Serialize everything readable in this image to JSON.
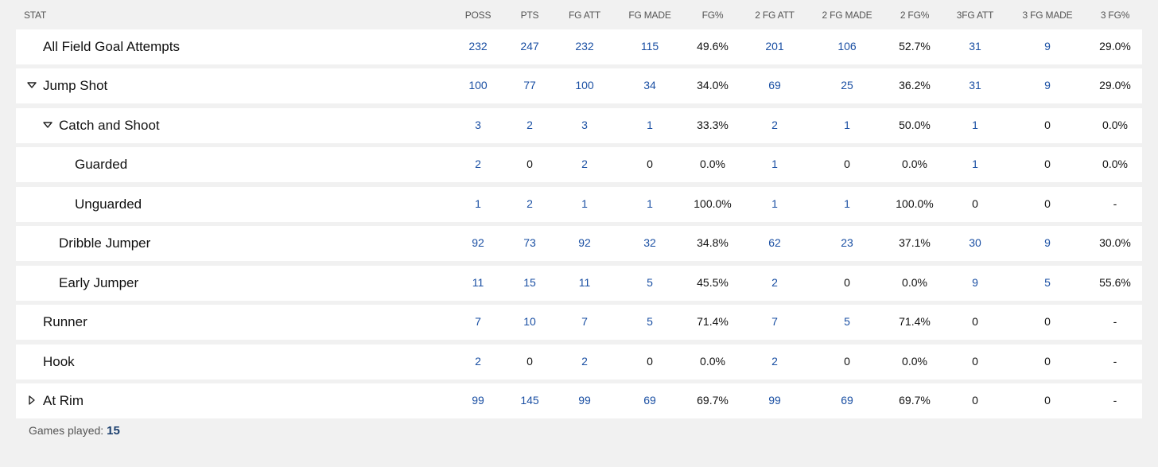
{
  "columns": [
    "STAT",
    "POSS",
    "PTS",
    "FG ATT",
    "FG MADE",
    "FG%",
    "2 FG ATT",
    "2 FG MADE",
    "2 FG%",
    "3FG ATT",
    "3 FG MADE",
    "3 FG%"
  ],
  "rows": [
    {
      "label": "All Field Goal Attempts",
      "indent": 0,
      "toggle": "none",
      "cells": [
        "232",
        "247",
        "232",
        "115",
        "49.6%",
        "201",
        "106",
        "52.7%",
        "31",
        "9",
        "29.0%"
      ],
      "links": [
        true,
        true,
        true,
        true,
        false,
        true,
        true,
        false,
        true,
        true,
        false
      ]
    },
    {
      "label": "Jump Shot",
      "indent": 0,
      "toggle": "expanded",
      "cells": [
        "100",
        "77",
        "100",
        "34",
        "34.0%",
        "69",
        "25",
        "36.2%",
        "31",
        "9",
        "29.0%"
      ],
      "links": [
        true,
        true,
        true,
        true,
        false,
        true,
        true,
        false,
        true,
        true,
        false
      ]
    },
    {
      "label": "Catch and Shoot",
      "indent": 1,
      "toggle": "expanded",
      "cells": [
        "3",
        "2",
        "3",
        "1",
        "33.3%",
        "2",
        "1",
        "50.0%",
        "1",
        "0",
        "0.0%"
      ],
      "links": [
        true,
        true,
        true,
        true,
        false,
        true,
        true,
        false,
        true,
        false,
        false
      ]
    },
    {
      "label": "Guarded",
      "indent": 2,
      "toggle": "none",
      "cells": [
        "2",
        "0",
        "2",
        "0",
        "0.0%",
        "1",
        "0",
        "0.0%",
        "1",
        "0",
        "0.0%"
      ],
      "links": [
        true,
        false,
        true,
        false,
        false,
        true,
        false,
        false,
        true,
        false,
        false
      ]
    },
    {
      "label": "Unguarded",
      "indent": 2,
      "toggle": "none",
      "cells": [
        "1",
        "2",
        "1",
        "1",
        "100.0%",
        "1",
        "1",
        "100.0%",
        "0",
        "0",
        "-"
      ],
      "links": [
        true,
        true,
        true,
        true,
        false,
        true,
        true,
        false,
        false,
        false,
        false
      ]
    },
    {
      "label": "Dribble Jumper",
      "indent": 1,
      "toggle": "none",
      "cells": [
        "92",
        "73",
        "92",
        "32",
        "34.8%",
        "62",
        "23",
        "37.1%",
        "30",
        "9",
        "30.0%"
      ],
      "links": [
        true,
        true,
        true,
        true,
        false,
        true,
        true,
        false,
        true,
        true,
        false
      ]
    },
    {
      "label": "Early Jumper",
      "indent": 1,
      "toggle": "none",
      "cells": [
        "11",
        "15",
        "11",
        "5",
        "45.5%",
        "2",
        "0",
        "0.0%",
        "9",
        "5",
        "55.6%"
      ],
      "links": [
        true,
        true,
        true,
        true,
        false,
        true,
        false,
        false,
        true,
        true,
        false
      ]
    },
    {
      "label": "Runner",
      "indent": 0,
      "toggle": "none",
      "cells": [
        "7",
        "10",
        "7",
        "5",
        "71.4%",
        "7",
        "5",
        "71.4%",
        "0",
        "0",
        "-"
      ],
      "links": [
        true,
        true,
        true,
        true,
        false,
        true,
        true,
        false,
        false,
        false,
        false
      ]
    },
    {
      "label": "Hook",
      "indent": 0,
      "toggle": "none",
      "cells": [
        "2",
        "0",
        "2",
        "0",
        "0.0%",
        "2",
        "0",
        "0.0%",
        "0",
        "0",
        "-"
      ],
      "links": [
        true,
        false,
        true,
        false,
        false,
        true,
        false,
        false,
        false,
        false,
        false
      ]
    },
    {
      "label": "At Rim",
      "indent": 0,
      "toggle": "collapsed",
      "cells": [
        "99",
        "145",
        "99",
        "69",
        "69.7%",
        "99",
        "69",
        "69.7%",
        "0",
        "0",
        "-"
      ],
      "links": [
        true,
        true,
        true,
        true,
        false,
        true,
        true,
        false,
        false,
        false,
        false
      ]
    }
  ],
  "footer": {
    "games_played_label": "Games played:",
    "games_played_value": "15"
  },
  "colors": {
    "link": "#1a4fa3",
    "row_bg": "#ffffff",
    "page_bg": "#f1f1f1"
  }
}
